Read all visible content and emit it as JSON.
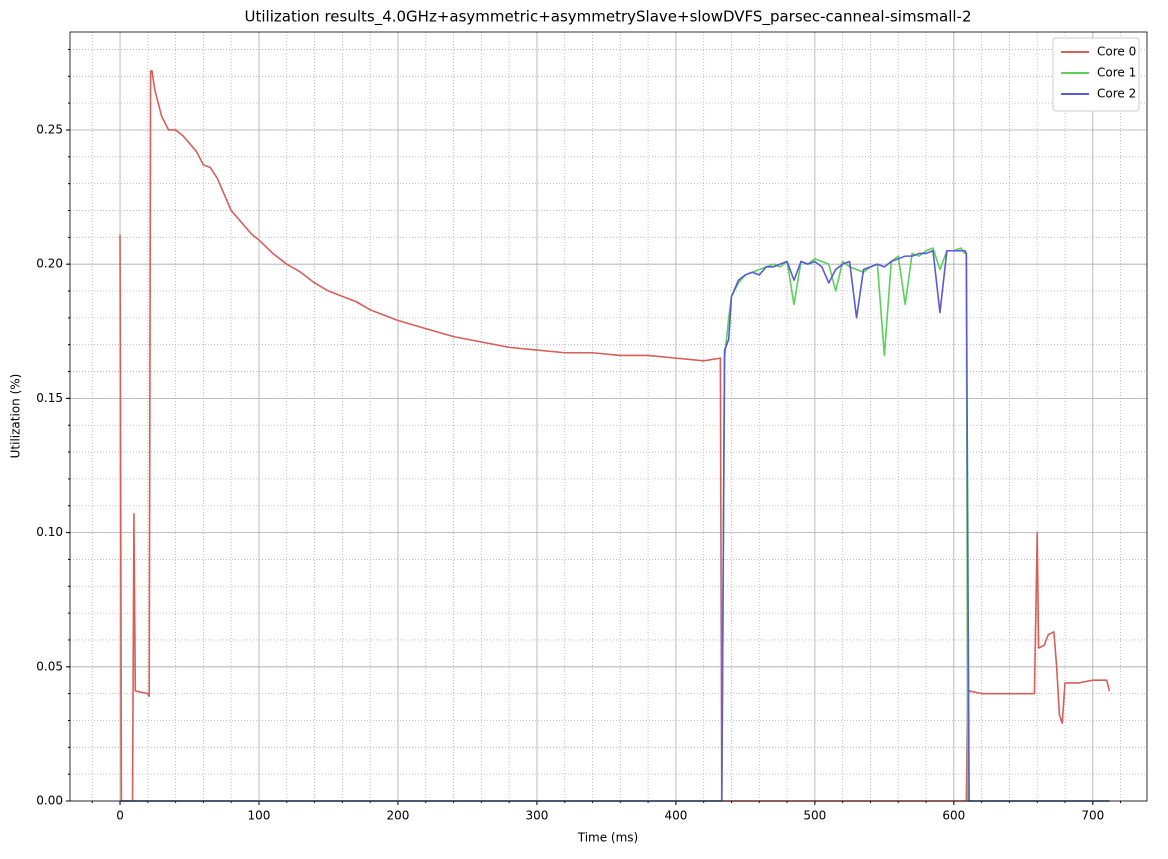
{
  "chart_data": {
    "type": "line",
    "title": "Utilization results_4.0GHz+asymmetric+asymmetrySlave+slowDVFS_parsec-canneal-simsmall-2",
    "x_label": "Time (ms)",
    "y_label": "Utilization (%)",
    "x": [
      0,
      1,
      9,
      10,
      11,
      20,
      21,
      22,
      23,
      25,
      30,
      35,
      40,
      45,
      50,
      55,
      60,
      65,
      70,
      75,
      80,
      85,
      90,
      95,
      100,
      110,
      120,
      130,
      140,
      150,
      160,
      170,
      180,
      190,
      200,
      220,
      240,
      260,
      280,
      300,
      320,
      340,
      360,
      380,
      400,
      420,
      432,
      433,
      435,
      438,
      440,
      445,
      450,
      455,
      460,
      465,
      470,
      475,
      480,
      485,
      490,
      495,
      500,
      505,
      510,
      515,
      520,
      525,
      530,
      535,
      540,
      545,
      550,
      555,
      560,
      565,
      570,
      575,
      580,
      585,
      590,
      595,
      600,
      605,
      608,
      609,
      610,
      611,
      620,
      640,
      658,
      660,
      661,
      665,
      668,
      672,
      674,
      676,
      678,
      680,
      690,
      700,
      710,
      712
    ],
    "series": [
      {
        "name": "Core 0",
        "color": "#d65f5a",
        "values": [
          0.211,
          0,
          0,
          0.107,
          0.041,
          0.04,
          0.039,
          0.272,
          0.272,
          0.265,
          0.255,
          0.25,
          0.25,
          0.248,
          0.245,
          0.242,
          0.237,
          0.236,
          0.232,
          0.226,
          0.22,
          0.217,
          0.214,
          0.211,
          0.209,
          0.204,
          0.2,
          0.197,
          0.193,
          0.19,
          0.188,
          0.186,
          0.183,
          0.181,
          0.179,
          0.176,
          0.173,
          0.171,
          0.169,
          0.168,
          0.167,
          0.167,
          0.166,
          0.166,
          0.165,
          0.164,
          0.165,
          0,
          0,
          0,
          0,
          0,
          0,
          0,
          0,
          0,
          0,
          0,
          0,
          0,
          0,
          0,
          0,
          0,
          0,
          0,
          0,
          0,
          0,
          0,
          0,
          0,
          0,
          0,
          0,
          0,
          0,
          0,
          0,
          0,
          0,
          0,
          0,
          0,
          0,
          0,
          0.042,
          0.041,
          0.04,
          0.04,
          0.04,
          0.1,
          0.057,
          0.058,
          0.062,
          0.063,
          0.05,
          0.032,
          0.029,
          0.044,
          0.044,
          0.045,
          0.045,
          0.041
        ]
      },
      {
        "name": "Core 1",
        "color": "#5ad15a",
        "values": [
          0,
          0,
          0,
          0,
          0,
          0,
          0,
          0,
          0,
          0,
          0,
          0,
          0,
          0,
          0,
          0,
          0,
          0,
          0,
          0,
          0,
          0,
          0,
          0,
          0,
          0,
          0,
          0,
          0,
          0,
          0,
          0,
          0,
          0,
          0,
          0,
          0,
          0,
          0,
          0,
          0,
          0,
          0,
          0,
          0,
          0,
          0,
          0,
          0.165,
          0.18,
          0.188,
          0.193,
          0.196,
          0.197,
          0.198,
          0.199,
          0.2,
          0.199,
          0.201,
          0.185,
          0.201,
          0.2,
          0.202,
          0.201,
          0.2,
          0.19,
          0.201,
          0.199,
          0.198,
          0.197,
          0.199,
          0.2,
          0.166,
          0.201,
          0.203,
          0.185,
          0.204,
          0.203,
          0.205,
          0.206,
          0.198,
          0.205,
          0.205,
          0.206,
          0.204,
          0.204,
          0,
          0,
          0,
          0,
          0,
          0,
          0,
          0,
          0,
          0,
          0,
          0,
          0,
          0,
          0,
          0,
          0,
          0
        ]
      },
      {
        "name": "Core 2",
        "color": "#5a5ad6",
        "values": [
          0,
          0,
          0,
          0,
          0,
          0,
          0,
          0,
          0,
          0,
          0,
          0,
          0,
          0,
          0,
          0,
          0,
          0,
          0,
          0,
          0,
          0,
          0,
          0,
          0,
          0,
          0,
          0,
          0,
          0,
          0,
          0,
          0,
          0,
          0,
          0,
          0,
          0,
          0,
          0,
          0,
          0,
          0,
          0,
          0,
          0,
          0,
          0,
          0.168,
          0.172,
          0.188,
          0.194,
          0.196,
          0.197,
          0.196,
          0.199,
          0.199,
          0.2,
          0.201,
          0.194,
          0.201,
          0.2,
          0.201,
          0.199,
          0.193,
          0.198,
          0.2,
          0.201,
          0.18,
          0.198,
          0.199,
          0.2,
          0.199,
          0.201,
          0.202,
          0.203,
          0.203,
          0.204,
          0.204,
          0.205,
          0.182,
          0.205,
          0.205,
          0.205,
          0.205,
          0.204,
          0.1,
          0,
          0,
          0,
          0,
          0,
          0,
          0,
          0,
          0,
          0,
          0,
          0,
          0,
          0,
          0,
          0,
          0
        ]
      }
    ],
    "xlim": [
      -36,
      739
    ],
    "ylim": [
      0,
      0.2865
    ],
    "xticks": [
      0,
      100,
      200,
      300,
      400,
      500,
      600,
      700
    ],
    "yticks": [
      {
        "value": 0,
        "label": "0.00"
      },
      {
        "value": 0.05,
        "label": "0.05"
      },
      {
        "value": 0.1,
        "label": "0.10"
      },
      {
        "value": 0.15,
        "label": "0.15"
      },
      {
        "value": 0.2,
        "label": "0.20"
      },
      {
        "value": 0.25,
        "label": "0.25"
      }
    ],
    "grid": true,
    "minor_grid": true,
    "legend": "upper right"
  }
}
